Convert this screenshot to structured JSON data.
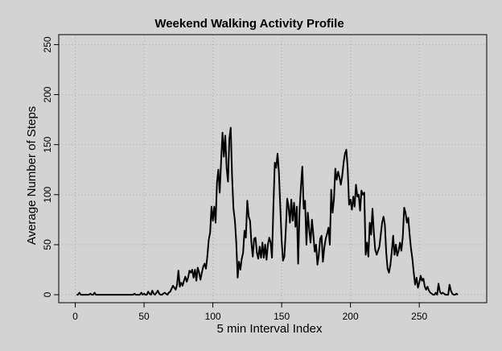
{
  "chart_data": {
    "type": "line",
    "title": "Weekend Walking Activity Profile",
    "xlabel": "5 min Interval Index",
    "ylabel": "Average Number of Steps",
    "xlim": [
      -12,
      299
    ],
    "ylim": [
      -8,
      260
    ],
    "x_ticks": [
      0,
      50,
      100,
      150,
      200,
      250
    ],
    "y_ticks": [
      0,
      50,
      100,
      150,
      200,
      250
    ],
    "x_tick_labels": [
      "0",
      "50",
      "100",
      "150",
      "200",
      "250"
    ],
    "y_tick_labels": [
      "0",
      "50",
      "100",
      "150",
      "200",
      "250"
    ],
    "grid": true,
    "line_color": "#000000",
    "points": [
      [
        1,
        0
      ],
      [
        2,
        0
      ],
      [
        3,
        2
      ],
      [
        4,
        0
      ],
      [
        5,
        0
      ],
      [
        6,
        0
      ],
      [
        7,
        0
      ],
      [
        8,
        0
      ],
      [
        9,
        0
      ],
      [
        10,
        0
      ],
      [
        11,
        1
      ],
      [
        12,
        0
      ],
      [
        13,
        0
      ],
      [
        14,
        2
      ],
      [
        15,
        0
      ],
      [
        16,
        0
      ],
      [
        17,
        0
      ],
      [
        18,
        0
      ],
      [
        19,
        0
      ],
      [
        20,
        0
      ],
      [
        21,
        0
      ],
      [
        22,
        0
      ],
      [
        23,
        0
      ],
      [
        24,
        0
      ],
      [
        25,
        0
      ],
      [
        26,
        0
      ],
      [
        27,
        0
      ],
      [
        28,
        0
      ],
      [
        29,
        0
      ],
      [
        30,
        0
      ],
      [
        31,
        0
      ],
      [
        32,
        0
      ],
      [
        33,
        0
      ],
      [
        34,
        0
      ],
      [
        35,
        0
      ],
      [
        36,
        0
      ],
      [
        37,
        0
      ],
      [
        38,
        0
      ],
      [
        39,
        0
      ],
      [
        40,
        0
      ],
      [
        41,
        0
      ],
      [
        42,
        0
      ],
      [
        43,
        1
      ],
      [
        44,
        0
      ],
      [
        45,
        0
      ],
      [
        46,
        0
      ],
      [
        47,
        0
      ],
      [
        48,
        2
      ],
      [
        49,
        0
      ],
      [
        50,
        1
      ],
      [
        51,
        0
      ],
      [
        52,
        0
      ],
      [
        53,
        3
      ],
      [
        54,
        1
      ],
      [
        55,
        0
      ],
      [
        56,
        4
      ],
      [
        57,
        1
      ],
      [
        58,
        0
      ],
      [
        59,
        2
      ],
      [
        60,
        4
      ],
      [
        61,
        1
      ],
      [
        62,
        0
      ],
      [
        63,
        0
      ],
      [
        64,
        1
      ],
      [
        65,
        2
      ],
      [
        66,
        1
      ],
      [
        67,
        0
      ],
      [
        68,
        2
      ],
      [
        69,
        3
      ],
      [
        70,
        6
      ],
      [
        71,
        9
      ],
      [
        72,
        7
      ],
      [
        73,
        5
      ],
      [
        74,
        10
      ],
      [
        75,
        24
      ],
      [
        76,
        8
      ],
      [
        77,
        12
      ],
      [
        78,
        9
      ],
      [
        79,
        14
      ],
      [
        80,
        18
      ],
      [
        81,
        13
      ],
      [
        82,
        17
      ],
      [
        83,
        24
      ],
      [
        84,
        22
      ],
      [
        85,
        25
      ],
      [
        86,
        17
      ],
      [
        87,
        25
      ],
      [
        88,
        14
      ],
      [
        89,
        27
      ],
      [
        90,
        22
      ],
      [
        91,
        15
      ],
      [
        92,
        22
      ],
      [
        93,
        28
      ],
      [
        94,
        31
      ],
      [
        95,
        26
      ],
      [
        96,
        38
      ],
      [
        97,
        55
      ],
      [
        98,
        62
      ],
      [
        99,
        88
      ],
      [
        100,
        74
      ],
      [
        101,
        88
      ],
      [
        102,
        72
      ],
      [
        103,
        112
      ],
      [
        104,
        125
      ],
      [
        105,
        102
      ],
      [
        106,
        134
      ],
      [
        107,
        162
      ],
      [
        108,
        138
      ],
      [
        109,
        159
      ],
      [
        110,
        127
      ],
      [
        111,
        113
      ],
      [
        112,
        156
      ],
      [
        113,
        167
      ],
      [
        114,
        118
      ],
      [
        115,
        86
      ],
      [
        116,
        74
      ],
      [
        117,
        52
      ],
      [
        118,
        17
      ],
      [
        119,
        33
      ],
      [
        120,
        25
      ],
      [
        121,
        36
      ],
      [
        122,
        42
      ],
      [
        123,
        64
      ],
      [
        124,
        57
      ],
      [
        125,
        94
      ],
      [
        126,
        78
      ],
      [
        127,
        74
      ],
      [
        128,
        52
      ],
      [
        129,
        38
      ],
      [
        130,
        56
      ],
      [
        131,
        57
      ],
      [
        132,
        42
      ],
      [
        133,
        36
      ],
      [
        134,
        48
      ],
      [
        135,
        37
      ],
      [
        136,
        52
      ],
      [
        137,
        37
      ],
      [
        138,
        50
      ],
      [
        139,
        35
      ],
      [
        140,
        50
      ],
      [
        141,
        57
      ],
      [
        142,
        52
      ],
      [
        143,
        37
      ],
      [
        144,
        90
      ],
      [
        145,
        132
      ],
      [
        146,
        127
      ],
      [
        147,
        141
      ],
      [
        148,
        122
      ],
      [
        149,
        88
      ],
      [
        150,
        54
      ],
      [
        151,
        34
      ],
      [
        152,
        38
      ],
      [
        153,
        65
      ],
      [
        154,
        96
      ],
      [
        155,
        88
      ],
      [
        156,
        72
      ],
      [
        157,
        95
      ],
      [
        158,
        74
      ],
      [
        159,
        92
      ],
      [
        160,
        68
      ],
      [
        161,
        88
      ],
      [
        162,
        31
      ],
      [
        163,
        85
      ],
      [
        164,
        108
      ],
      [
        165,
        128
      ],
      [
        166,
        86
      ],
      [
        167,
        94
      ],
      [
        168,
        50
      ],
      [
        169,
        82
      ],
      [
        170,
        66
      ],
      [
        171,
        52
      ],
      [
        172,
        75
      ],
      [
        173,
        60
      ],
      [
        174,
        43
      ],
      [
        175,
        50
      ],
      [
        176,
        30
      ],
      [
        177,
        40
      ],
      [
        178,
        56
      ],
      [
        179,
        59
      ],
      [
        180,
        33
      ],
      [
        181,
        47
      ],
      [
        182,
        56
      ],
      [
        183,
        61
      ],
      [
        184,
        67
      ],
      [
        185,
        50
      ],
      [
        186,
        105
      ],
      [
        187,
        82
      ],
      [
        188,
        95
      ],
      [
        189,
        126
      ],
      [
        190,
        115
      ],
      [
        191,
        123
      ],
      [
        192,
        117
      ],
      [
        193,
        110
      ],
      [
        194,
        119
      ],
      [
        195,
        132
      ],
      [
        196,
        141
      ],
      [
        197,
        145
      ],
      [
        198,
        126
      ],
      [
        199,
        90
      ],
      [
        200,
        95
      ],
      [
        201,
        85
      ],
      [
        202,
        98
      ],
      [
        203,
        88
      ],
      [
        204,
        110
      ],
      [
        205,
        98
      ],
      [
        206,
        100
      ],
      [
        207,
        84
      ],
      [
        208,
        104
      ],
      [
        209,
        100
      ],
      [
        210,
        102
      ],
      [
        211,
        40
      ],
      [
        212,
        52
      ],
      [
        213,
        38
      ],
      [
        214,
        72
      ],
      [
        215,
        60
      ],
      [
        216,
        86
      ],
      [
        217,
        62
      ],
      [
        218,
        45
      ],
      [
        219,
        40
      ],
      [
        220,
        44
      ],
      [
        221,
        48
      ],
      [
        222,
        60
      ],
      [
        223,
        72
      ],
      [
        224,
        78
      ],
      [
        225,
        70
      ],
      [
        226,
        42
      ],
      [
        227,
        26
      ],
      [
        228,
        22
      ],
      [
        229,
        30
      ],
      [
        230,
        43
      ],
      [
        231,
        59
      ],
      [
        232,
        40
      ],
      [
        233,
        50
      ],
      [
        234,
        39
      ],
      [
        235,
        44
      ],
      [
        236,
        52
      ],
      [
        237,
        44
      ],
      [
        238,
        58
      ],
      [
        239,
        87
      ],
      [
        240,
        82
      ],
      [
        241,
        72
      ],
      [
        242,
        77
      ],
      [
        243,
        60
      ],
      [
        244,
        46
      ],
      [
        245,
        36
      ],
      [
        246,
        22
      ],
      [
        247,
        10
      ],
      [
        248,
        17
      ],
      [
        249,
        7
      ],
      [
        250,
        12
      ],
      [
        251,
        19
      ],
      [
        252,
        14
      ],
      [
        253,
        16
      ],
      [
        254,
        8
      ],
      [
        255,
        5
      ],
      [
        256,
        8
      ],
      [
        257,
        4
      ],
      [
        258,
        2
      ],
      [
        259,
        1
      ],
      [
        260,
        0
      ],
      [
        261,
        0
      ],
      [
        262,
        2
      ],
      [
        263,
        0
      ],
      [
        264,
        11
      ],
      [
        265,
        3
      ],
      [
        266,
        1
      ],
      [
        267,
        2
      ],
      [
        268,
        1
      ],
      [
        269,
        0
      ],
      [
        270,
        0
      ],
      [
        271,
        0
      ],
      [
        272,
        10
      ],
      [
        273,
        4
      ],
      [
        274,
        1
      ],
      [
        275,
        0
      ],
      [
        276,
        0
      ],
      [
        277,
        1
      ],
      [
        278,
        0
      ]
    ]
  }
}
